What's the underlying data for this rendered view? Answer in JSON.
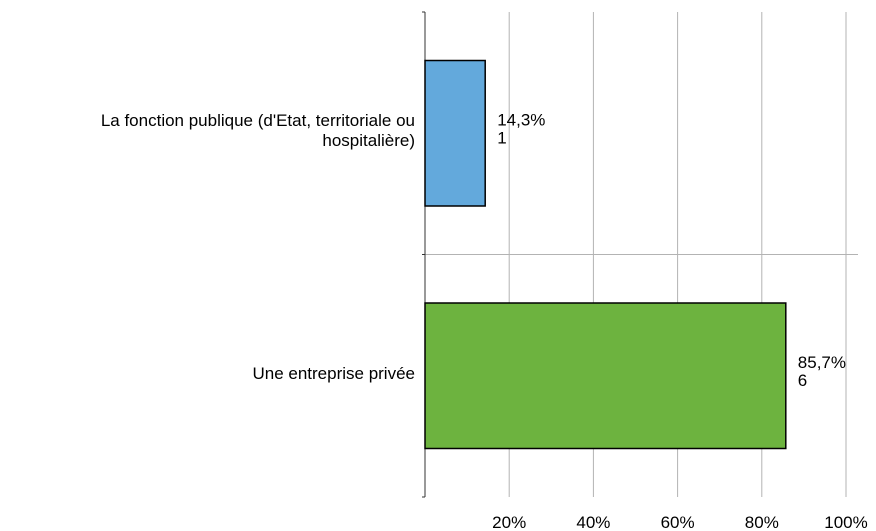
{
  "chart_data": {
    "type": "bar",
    "orientation": "horizontal",
    "title": "",
    "xlabel": "",
    "ylabel": "",
    "xlim": [
      0,
      100
    ],
    "x_ticks": [
      {
        "value": 20,
        "label": "20%"
      },
      {
        "value": 40,
        "label": "40%"
      },
      {
        "value": 60,
        "label": "60%"
      },
      {
        "value": 80,
        "label": "80%"
      },
      {
        "value": 100,
        "label": "100%"
      }
    ],
    "grid": true,
    "bars": [
      {
        "category_lines": [
          "La fonction publique (d'Etat, territoriale ou",
          "hospitalière)"
        ],
        "value": 14.3,
        "percent_label": "14,3%",
        "count_label": "1",
        "color": "#63a9dc"
      },
      {
        "category_lines": [
          "Une entreprise privée"
        ],
        "value": 85.7,
        "percent_label": "85,7%",
        "count_label": "6",
        "color": "#6db33f"
      }
    ]
  }
}
